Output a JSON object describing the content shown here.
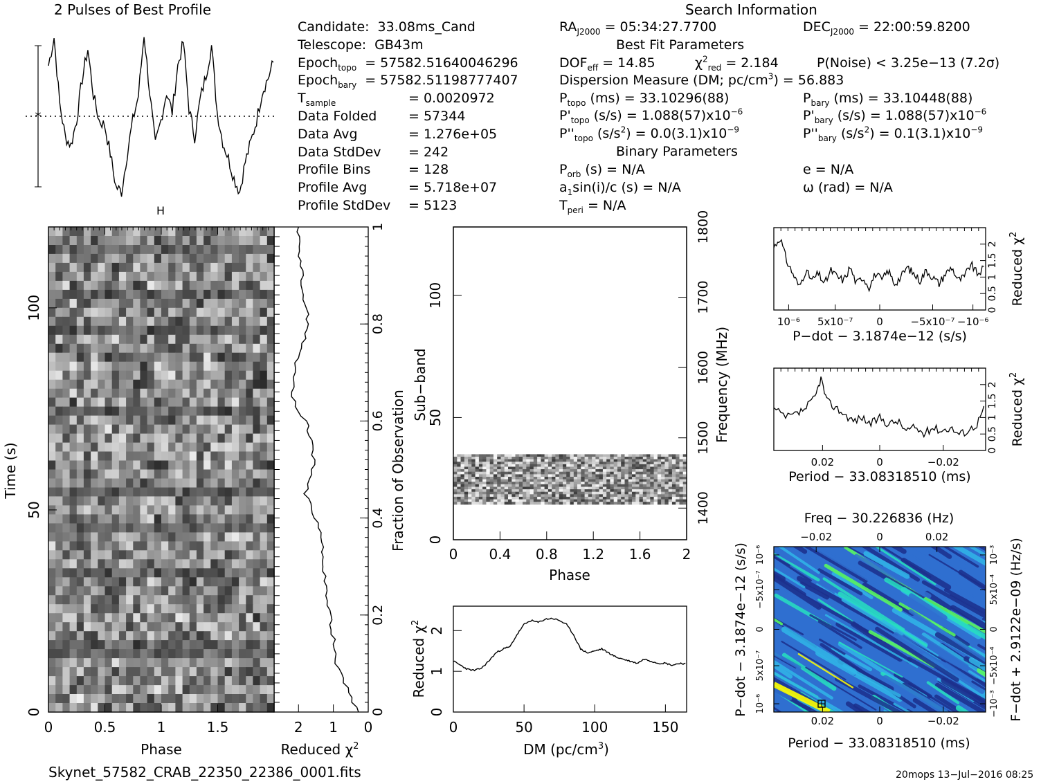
{
  "header": {
    "profile_title": "2 Pulses of Best Profile",
    "search_title": "Search Information",
    "best_fit_title": "Best Fit Parameters",
    "binary_title": "Binary Parameters"
  },
  "candidate_info": [
    {
      "label": "Candidate:",
      "value": "33.08ms_Cand"
    },
    {
      "label": "Telescope:",
      "value": "GB43m"
    },
    {
      "label": "Epoch",
      "sub": "topo",
      "value": "= 57582.51640046296"
    },
    {
      "label": "Epoch",
      "sub": "bary",
      "value": "= 57582.51198777407"
    },
    {
      "label": "T",
      "sub": "sample",
      "value": "0.0020972"
    },
    {
      "label": "Data Folded",
      "value": "57344"
    },
    {
      "label": "Data Avg",
      "value": "1.276e+05"
    },
    {
      "label": "Data StdDev",
      "value": "242"
    },
    {
      "label": "Profile Bins",
      "value": "128"
    },
    {
      "label": "Profile Avg",
      "value": "5.718e+07"
    },
    {
      "label": "Profile StdDev",
      "value": "5123"
    }
  ],
  "search_info": {
    "ra_label": "RA",
    "ra_sub": "J2000",
    "ra_value": "= 05:34:27.7700",
    "dec_label": "DEC",
    "dec_sub": "J2000",
    "dec_value": "= 22:00:59.8200",
    "dof_label": "DOF",
    "dof_sub": "eff",
    "dof_value": "= 14.85",
    "chi_label": "χ",
    "chi_sup": "2",
    "chi_sub": "red",
    "chi_value": "= 2.184",
    "pnoise": "P(Noise) < 3.25e−13   (7.2σ)",
    "dm_text": "Dispersion Measure (DM; pc/cm",
    "dm_sup": "3",
    "dm_value": ") = 56.883",
    "ptopo_label": "P",
    "ptopo_sub": "topo",
    "ptopo_value": "(ms) =  33.10296(88)",
    "pbary_label": "P",
    "pbary_sub": "bary",
    "pbary_value": "(ms) =  33.10448(88)",
    "pdtopo_label": "P'",
    "pdtopo_sub": "topo",
    "pdtopo_value": "(s/s) =  1.088(57)x10",
    "pdtopo_exp": "−6",
    "pdbary_label": "P'",
    "pdbary_sub": "bary",
    "pdbary_value": "(s/s) =  1.088(57)x10",
    "pdbary_exp": "−6",
    "pddtopo_label": "P''",
    "pddtopo_sub": "topo",
    "pddtopo_value": "(s/s",
    "pddtopo_value2": ") = 0.0(3.1)x10",
    "pddtopo_exp": "−9",
    "pddbary_label": "P''",
    "pddbary_sub": "bary",
    "pddbary_value": "(s/s",
    "pddbary_value2": ") =  0.1(3.1)x10",
    "pddbary_exp": "−9",
    "porb_label": "P",
    "porb_sub": "orb",
    "porb_value": "(s) = N/A",
    "e_value": "e = N/A",
    "a1_label": "a",
    "a1_sub": "1",
    "a1_value": "sin(i)/c (s) = N/A",
    "omega_value": "ω (rad) = N/A",
    "tperi_label": "T",
    "tperi_sub": "peri",
    "tperi_value": "= N/A"
  },
  "footer": {
    "filename": "Skynet_57582_CRAB_22350_22386_0001.fits",
    "stamp": "20mops 13−Jul−2016 08:25"
  },
  "chart_data": [
    {
      "id": "pulse-profile",
      "type": "line",
      "title": "2 Pulses of Best Profile",
      "x": [
        0,
        0.05,
        0.1,
        0.15,
        0.2,
        0.25,
        0.3,
        0.35,
        0.4,
        0.45,
        0.5,
        0.55,
        0.6,
        0.65,
        0.7,
        0.75,
        0.8,
        0.85,
        0.9,
        0.95,
        1.0,
        1.05,
        1.1,
        1.15,
        1.2,
        1.25,
        1.3,
        1.35,
        1.4,
        1.45,
        1.5,
        1.55,
        1.6,
        1.65,
        1.7,
        1.75,
        1.8,
        1.85,
        1.9,
        1.95,
        2.0
      ],
      "values": [
        0.78,
        0.95,
        0.55,
        0.35,
        0.3,
        0.45,
        0.7,
        0.88,
        0.6,
        0.45,
        0.42,
        0.25,
        0.05,
        0.02,
        0.25,
        0.45,
        0.6,
        0.97,
        0.62,
        0.3,
        0.45,
        0.62,
        0.5,
        0.78,
        0.92,
        0.52,
        0.35,
        0.58,
        0.72,
        0.9,
        0.5,
        0.32,
        0.22,
        0.1,
        0.02,
        0.2,
        0.32,
        0.45,
        0.62,
        0.7,
        0.8
      ],
      "ylim": [
        0,
        1
      ]
    },
    {
      "id": "time-phase",
      "type": "heatmap",
      "xlabel": "Phase",
      "ylabel": "Time (s)",
      "x_ticks": [
        "0",
        "0.5",
        "1",
        "1.5"
      ],
      "y_ticks": [
        "0",
        "50",
        "100"
      ],
      "xlim": [
        0,
        2
      ],
      "ylim": [
        0,
        120
      ]
    },
    {
      "id": "time-chi2",
      "type": "line",
      "xlabel": "Reduced χ",
      "xlabel_sup": "2",
      "ylabel_right": "Fraction of Observation",
      "x_ticks": [
        "2",
        "1",
        "0"
      ],
      "y_ticks_right": [
        "0",
        "0.2",
        "0.4",
        "0.6",
        "0.8",
        "1"
      ],
      "xlim": [
        2.7,
        0
      ],
      "y": [
        0,
        0.05,
        0.1,
        0.15,
        0.2,
        0.25,
        0.3,
        0.35,
        0.4,
        0.45,
        0.5,
        0.55,
        0.6,
        0.65,
        0.7,
        0.75,
        0.8,
        0.85,
        0.9,
        0.95,
        1.0
      ],
      "values": [
        0.3,
        0.6,
        0.9,
        1.0,
        1.1,
        1.2,
        1.3,
        1.35,
        1.5,
        1.8,
        1.6,
        1.55,
        1.8,
        2.2,
        2.15,
        1.9,
        1.7,
        1.85,
        1.9,
        2.0,
        2.0
      ]
    },
    {
      "id": "subband-phase",
      "type": "heatmap",
      "xlabel": "Phase",
      "ylabel": "Sub−band",
      "ylabel_right": "Frequency (MHz)",
      "x_ticks": [
        "0",
        "0.4",
        "0.8",
        "1.2",
        "1.6",
        "2"
      ],
      "y_ticks": [
        "0",
        "50",
        "100"
      ],
      "y_ticks_right": [
        "1400",
        "1500",
        "1600",
        "1700",
        "1800"
      ],
      "xlim": [
        0,
        2
      ],
      "ylim": [
        0,
        128
      ]
    },
    {
      "id": "dm-chi2",
      "type": "line",
      "xlabel": "DM (pc/cm",
      "xlabel_sup": "3",
      "xlabel_end": ")",
      "ylabel": "Reduced χ",
      "ylabel_sup": "2",
      "x_ticks": [
        "0",
        "50",
        "100",
        "150"
      ],
      "y_ticks": [
        "0",
        "1",
        "2"
      ],
      "xlim": [
        0,
        165
      ],
      "ylim": [
        0,
        2.6
      ],
      "x": [
        0,
        5,
        10,
        15,
        20,
        25,
        30,
        35,
        40,
        45,
        50,
        55,
        60,
        65,
        70,
        75,
        80,
        85,
        90,
        95,
        100,
        105,
        110,
        115,
        120,
        125,
        130,
        135,
        140,
        145,
        150,
        155,
        160,
        165
      ],
      "values": [
        1.25,
        1.15,
        1.05,
        1.02,
        1.08,
        1.25,
        1.45,
        1.55,
        1.6,
        1.9,
        2.15,
        2.25,
        2.2,
        2.28,
        2.3,
        2.25,
        2.15,
        1.9,
        1.55,
        1.45,
        1.5,
        1.55,
        1.45,
        1.35,
        1.3,
        1.25,
        1.2,
        1.3,
        1.25,
        1.2,
        1.2,
        1.15,
        1.2,
        1.18
      ]
    },
    {
      "id": "pdot-chi2",
      "type": "line",
      "xlabel": "P−dot − 3.1874e−12 (s/s)",
      "ylabel_right": "Reduced χ",
      "ylabel_right_sup": "2",
      "x_ticks": [
        "10⁻⁶",
        "5x10⁻⁷",
        "0",
        "−5x10⁻⁷",
        "−10⁻⁶"
      ],
      "y_ticks_right": [
        "0",
        "0.5",
        "1",
        "1.5",
        "2"
      ],
      "xlim": [
        0,
        1
      ],
      "ylim": [
        0,
        2.5
      ],
      "x": [
        0,
        0.03,
        0.06,
        0.09,
        0.12,
        0.15,
        0.18,
        0.21,
        0.24,
        0.27,
        0.3,
        0.33,
        0.36,
        0.39,
        0.42,
        0.45,
        0.48,
        0.51,
        0.54,
        0.57,
        0.6,
        0.63,
        0.66,
        0.69,
        0.72,
        0.75,
        0.78,
        0.81,
        0.84,
        0.87,
        0.9,
        0.93,
        0.96,
        1.0
      ],
      "values": [
        1.9,
        2.2,
        1.5,
        1.1,
        0.7,
        1.2,
        0.9,
        1.1,
        0.8,
        1.2,
        1.0,
        0.9,
        1.3,
        0.8,
        1.0,
        0.7,
        1.1,
        0.9,
        1.2,
        0.8,
        1.0,
        1.3,
        1.1,
        0.9,
        1.2,
        1.0,
        0.8,
        1.1,
        1.3,
        0.9,
        1.0,
        1.4,
        1.1,
        1.3
      ]
    },
    {
      "id": "period-chi2",
      "type": "line",
      "xlabel": "Period − 33.08318510 (ms)",
      "ylabel_right": "Reduced χ",
      "ylabel_right_sup": "2",
      "x_ticks": [
        "0.02",
        "0",
        "−0.02"
      ],
      "y_ticks_right": [
        "0",
        "0.5",
        "1",
        "1.5",
        "2"
      ],
      "xlim": [
        0.036,
        -0.036
      ],
      "ylim": [
        0,
        2.5
      ],
      "x": [
        0.036,
        0.032,
        0.028,
        0.025,
        0.022,
        0.02,
        0.018,
        0.015,
        0.012,
        0.009,
        0.006,
        0.003,
        0,
        -0.003,
        -0.006,
        -0.009,
        -0.012,
        -0.015,
        -0.018,
        -0.021,
        -0.024,
        -0.027,
        -0.03,
        -0.033,
        -0.036
      ],
      "values": [
        1.25,
        1.0,
        1.1,
        1.3,
        1.6,
        2.2,
        1.5,
        1.3,
        1.1,
        0.9,
        1.0,
        0.8,
        1.0,
        0.8,
        0.9,
        0.6,
        0.7,
        0.5,
        0.7,
        0.6,
        0.7,
        0.5,
        0.6,
        0.8,
        1.4
      ]
    },
    {
      "id": "period-pdot",
      "type": "heatmap",
      "title": "Freq − 30.226836 (Hz)",
      "xlabel": "Period − 33.08318510 (ms)",
      "ylabel": "P−dot − 3.1874e−12 (s/s)",
      "ylabel_right": "F−dot + 2.9122e−09 (Hz/s)",
      "x_ticks": [
        "0.02",
        "0",
        "−0.02"
      ],
      "top_ticks": [
        "−0.02",
        "0",
        "0.02"
      ],
      "y_ticks": [
        "10⁻⁶",
        "5x10⁻⁷",
        "0",
        "−5x10⁻⁷",
        "10⁻⁶"
      ],
      "y_ticks_right": [
        "−10⁻³",
        "−5x10⁻⁴",
        "0",
        "5x10⁻⁴",
        "10⁻³"
      ],
      "colors": [
        "#1c2f8c",
        "#2f6fd0",
        "#31b6e8",
        "#27e0c0",
        "#5bff5b",
        "#ffff00",
        "#ff7f50"
      ]
    }
  ]
}
